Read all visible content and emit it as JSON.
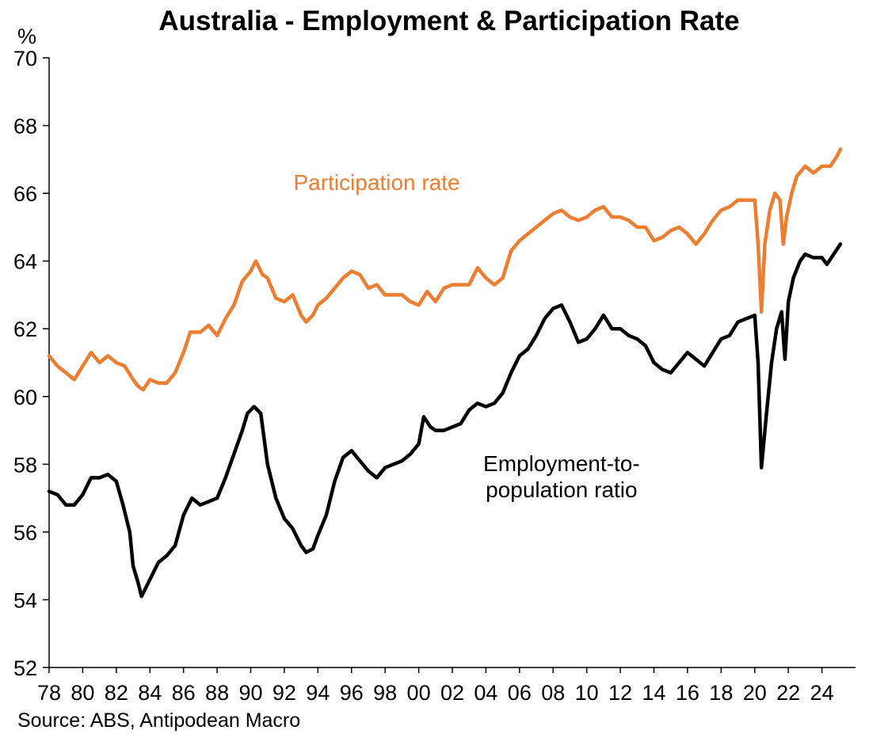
{
  "chart_data": {
    "type": "line",
    "title": "Australia - Employment & Participation Rate",
    "ylabel": "%",
    "ylim": [
      52,
      70
    ],
    "xlim": [
      1978,
      2026
    ],
    "y_ticks": [
      "52",
      "54",
      "56",
      "58",
      "60",
      "62",
      "64",
      "66",
      "68",
      "70"
    ],
    "x_ticks": [
      {
        "year": 1978,
        "label": "78"
      },
      {
        "year": 1980,
        "label": "80"
      },
      {
        "year": 1982,
        "label": "82"
      },
      {
        "year": 1984,
        "label": "84"
      },
      {
        "year": 1986,
        "label": "86"
      },
      {
        "year": 1988,
        "label": "88"
      },
      {
        "year": 1990,
        "label": "90"
      },
      {
        "year": 1992,
        "label": "92"
      },
      {
        "year": 1994,
        "label": "94"
      },
      {
        "year": 1996,
        "label": "96"
      },
      {
        "year": 1998,
        "label": "98"
      },
      {
        "year": 2000,
        "label": "00"
      },
      {
        "year": 2002,
        "label": "02"
      },
      {
        "year": 2004,
        "label": "04"
      },
      {
        "year": 2006,
        "label": "06"
      },
      {
        "year": 2008,
        "label": "08"
      },
      {
        "year": 2010,
        "label": "10"
      },
      {
        "year": 2012,
        "label": "12"
      },
      {
        "year": 2014,
        "label": "14"
      },
      {
        "year": 2016,
        "label": "16"
      },
      {
        "year": 2018,
        "label": "18"
      },
      {
        "year": 2020,
        "label": "20"
      },
      {
        "year": 2022,
        "label": "22"
      },
      {
        "year": 2024,
        "label": "24"
      }
    ],
    "grid": false,
    "source": "Source: ABS, Antipodean Macro",
    "series": [
      {
        "name": "Participation rate",
        "color": "#ED7D31",
        "points": [
          [
            1978.0,
            61.2
          ],
          [
            1978.5,
            60.9
          ],
          [
            1979.0,
            60.7
          ],
          [
            1979.5,
            60.5
          ],
          [
            1980.0,
            60.9
          ],
          [
            1980.5,
            61.3
          ],
          [
            1981.0,
            61.0
          ],
          [
            1981.5,
            61.2
          ],
          [
            1982.0,
            61.0
          ],
          [
            1982.5,
            60.9
          ],
          [
            1983.0,
            60.5
          ],
          [
            1983.3,
            60.3
          ],
          [
            1983.6,
            60.2
          ],
          [
            1984.0,
            60.5
          ],
          [
            1984.5,
            60.4
          ],
          [
            1985.0,
            60.4
          ],
          [
            1985.5,
            60.7
          ],
          [
            1986.0,
            61.3
          ],
          [
            1986.4,
            61.9
          ],
          [
            1987.0,
            61.9
          ],
          [
            1987.5,
            62.1
          ],
          [
            1988.0,
            61.8
          ],
          [
            1988.5,
            62.3
          ],
          [
            1989.0,
            62.7
          ],
          [
            1989.5,
            63.4
          ],
          [
            1990.0,
            63.7
          ],
          [
            1990.3,
            64.0
          ],
          [
            1990.7,
            63.6
          ],
          [
            1991.0,
            63.5
          ],
          [
            1991.5,
            62.9
          ],
          [
            1992.0,
            62.8
          ],
          [
            1992.5,
            63.0
          ],
          [
            1993.0,
            62.4
          ],
          [
            1993.3,
            62.2
          ],
          [
            1993.7,
            62.4
          ],
          [
            1994.0,
            62.7
          ],
          [
            1994.5,
            62.9
          ],
          [
            1995.0,
            63.2
          ],
          [
            1995.5,
            63.5
          ],
          [
            1996.0,
            63.7
          ],
          [
            1996.5,
            63.6
          ],
          [
            1997.0,
            63.2
          ],
          [
            1997.5,
            63.3
          ],
          [
            1998.0,
            63.0
          ],
          [
            1998.5,
            63.0
          ],
          [
            1999.0,
            63.0
          ],
          [
            1999.5,
            62.8
          ],
          [
            2000.0,
            62.7
          ],
          [
            2000.5,
            63.1
          ],
          [
            2001.0,
            62.8
          ],
          [
            2001.5,
            63.2
          ],
          [
            2002.0,
            63.3
          ],
          [
            2002.5,
            63.3
          ],
          [
            2003.0,
            63.3
          ],
          [
            2003.5,
            63.8
          ],
          [
            2004.0,
            63.5
          ],
          [
            2004.5,
            63.3
          ],
          [
            2005.0,
            63.5
          ],
          [
            2005.5,
            64.3
          ],
          [
            2006.0,
            64.6
          ],
          [
            2006.5,
            64.8
          ],
          [
            2007.0,
            65.0
          ],
          [
            2007.5,
            65.2
          ],
          [
            2008.0,
            65.4
          ],
          [
            2008.5,
            65.5
          ],
          [
            2009.0,
            65.3
          ],
          [
            2009.5,
            65.2
          ],
          [
            2010.0,
            65.3
          ],
          [
            2010.5,
            65.5
          ],
          [
            2011.0,
            65.6
          ],
          [
            2011.5,
            65.3
          ],
          [
            2012.0,
            65.3
          ],
          [
            2012.5,
            65.2
          ],
          [
            2013.0,
            65.0
          ],
          [
            2013.5,
            65.0
          ],
          [
            2014.0,
            64.6
          ],
          [
            2014.5,
            64.7
          ],
          [
            2015.0,
            64.9
          ],
          [
            2015.5,
            65.0
          ],
          [
            2016.0,
            64.8
          ],
          [
            2016.5,
            64.5
          ],
          [
            2017.0,
            64.8
          ],
          [
            2017.5,
            65.2
          ],
          [
            2018.0,
            65.5
          ],
          [
            2018.5,
            65.6
          ],
          [
            2019.0,
            65.8
          ],
          [
            2019.5,
            65.8
          ],
          [
            2020.0,
            65.8
          ],
          [
            2020.2,
            64.5
          ],
          [
            2020.4,
            62.5
          ],
          [
            2020.6,
            64.5
          ],
          [
            2020.9,
            65.5
          ],
          [
            2021.2,
            66.0
          ],
          [
            2021.5,
            65.8
          ],
          [
            2021.7,
            64.5
          ],
          [
            2021.9,
            65.3
          ],
          [
            2022.2,
            66.0
          ],
          [
            2022.5,
            66.5
          ],
          [
            2023.0,
            66.8
          ],
          [
            2023.5,
            66.6
          ],
          [
            2024.0,
            66.8
          ],
          [
            2024.5,
            66.8
          ],
          [
            2024.9,
            67.1
          ],
          [
            2025.1,
            67.3
          ]
        ]
      },
      {
        "name": "Employment-to-population ratio",
        "color": "#000000",
        "points": [
          [
            1978.0,
            57.2
          ],
          [
            1978.5,
            57.1
          ],
          [
            1979.0,
            56.8
          ],
          [
            1979.5,
            56.8
          ],
          [
            1980.0,
            57.1
          ],
          [
            1980.5,
            57.6
          ],
          [
            1981.0,
            57.6
          ],
          [
            1981.5,
            57.7
          ],
          [
            1982.0,
            57.5
          ],
          [
            1982.4,
            56.8
          ],
          [
            1982.8,
            56.0
          ],
          [
            1983.0,
            55.0
          ],
          [
            1983.3,
            54.5
          ],
          [
            1983.5,
            54.1
          ],
          [
            1984.0,
            54.6
          ],
          [
            1984.5,
            55.1
          ],
          [
            1985.0,
            55.3
          ],
          [
            1985.5,
            55.6
          ],
          [
            1986.0,
            56.5
          ],
          [
            1986.5,
            57.0
          ],
          [
            1987.0,
            56.8
          ],
          [
            1987.5,
            56.9
          ],
          [
            1988.0,
            57.0
          ],
          [
            1988.5,
            57.6
          ],
          [
            1989.0,
            58.3
          ],
          [
            1989.5,
            59.0
          ],
          [
            1989.8,
            59.5
          ],
          [
            1990.2,
            59.7
          ],
          [
            1990.6,
            59.5
          ],
          [
            1991.0,
            58.0
          ],
          [
            1991.5,
            57.0
          ],
          [
            1992.0,
            56.4
          ],
          [
            1992.5,
            56.1
          ],
          [
            1993.0,
            55.6
          ],
          [
            1993.3,
            55.4
          ],
          [
            1993.7,
            55.5
          ],
          [
            1994.0,
            55.9
          ],
          [
            1994.5,
            56.5
          ],
          [
            1995.0,
            57.5
          ],
          [
            1995.5,
            58.2
          ],
          [
            1996.0,
            58.4
          ],
          [
            1996.5,
            58.1
          ],
          [
            1997.0,
            57.8
          ],
          [
            1997.5,
            57.6
          ],
          [
            1998.0,
            57.9
          ],
          [
            1998.5,
            58.0
          ],
          [
            1999.0,
            58.1
          ],
          [
            1999.5,
            58.3
          ],
          [
            2000.0,
            58.6
          ],
          [
            2000.3,
            59.4
          ],
          [
            2000.7,
            59.1
          ],
          [
            2001.0,
            59.0
          ],
          [
            2001.5,
            59.0
          ],
          [
            2002.0,
            59.1
          ],
          [
            2002.5,
            59.2
          ],
          [
            2003.0,
            59.6
          ],
          [
            2003.5,
            59.8
          ],
          [
            2004.0,
            59.7
          ],
          [
            2004.5,
            59.8
          ],
          [
            2005.0,
            60.1
          ],
          [
            2005.5,
            60.7
          ],
          [
            2006.0,
            61.2
          ],
          [
            2006.5,
            61.4
          ],
          [
            2007.0,
            61.8
          ],
          [
            2007.5,
            62.3
          ],
          [
            2008.0,
            62.6
          ],
          [
            2008.5,
            62.7
          ],
          [
            2009.0,
            62.2
          ],
          [
            2009.5,
            61.6
          ],
          [
            2010.0,
            61.7
          ],
          [
            2010.5,
            62.0
          ],
          [
            2011.0,
            62.4
          ],
          [
            2011.5,
            62.0
          ],
          [
            2012.0,
            62.0
          ],
          [
            2012.5,
            61.8
          ],
          [
            2013.0,
            61.7
          ],
          [
            2013.5,
            61.5
          ],
          [
            2014.0,
            61.0
          ],
          [
            2014.5,
            60.8
          ],
          [
            2015.0,
            60.7
          ],
          [
            2015.5,
            61.0
          ],
          [
            2016.0,
            61.3
          ],
          [
            2016.5,
            61.1
          ],
          [
            2017.0,
            60.9
          ],
          [
            2017.5,
            61.3
          ],
          [
            2018.0,
            61.7
          ],
          [
            2018.5,
            61.8
          ],
          [
            2019.0,
            62.2
          ],
          [
            2019.5,
            62.3
          ],
          [
            2020.0,
            62.4
          ],
          [
            2020.2,
            61.0
          ],
          [
            2020.4,
            57.9
          ],
          [
            2020.7,
            59.5
          ],
          [
            2021.0,
            61.0
          ],
          [
            2021.3,
            62.0
          ],
          [
            2021.6,
            62.5
          ],
          [
            2021.8,
            61.1
          ],
          [
            2022.0,
            62.8
          ],
          [
            2022.3,
            63.5
          ],
          [
            2022.7,
            64.0
          ],
          [
            2023.0,
            64.2
          ],
          [
            2023.5,
            64.1
          ],
          [
            2024.0,
            64.1
          ],
          [
            2024.3,
            63.9
          ],
          [
            2024.7,
            64.2
          ],
          [
            2025.1,
            64.5
          ]
        ]
      }
    ],
    "series_labels": [
      {
        "series": 0,
        "lines": [
          "Participation rate"
        ],
        "at": [
          1997.5,
          66.1
        ]
      },
      {
        "series": 1,
        "lines": [
          "Employment-to-",
          "population ratio"
        ],
        "at": [
          2008.5,
          57.8
        ]
      }
    ]
  }
}
